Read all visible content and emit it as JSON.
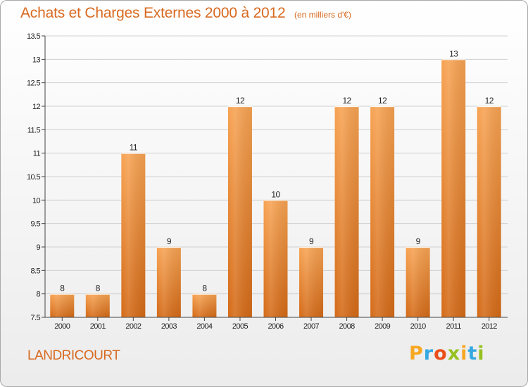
{
  "header": {
    "title": "Achats et Charges Externes 2000 à 2012",
    "subtitle": "(en milliers d'€)"
  },
  "commune": "LANDRICOURT",
  "logo": {
    "letters": [
      "P",
      "r",
      "o",
      "x",
      "i",
      "t",
      "i"
    ],
    "colors": [
      "#f7a823",
      "#36a9e1",
      "#e94e1b",
      "#95c11f",
      "#f7a823",
      "#36a9e1",
      "#95c11f"
    ]
  },
  "colors": {
    "bar_top": "#f7a353",
    "bar_bottom": "#d46a17",
    "text_accent": "#d8691f"
  },
  "chart_data": {
    "type": "bar",
    "title": "Achats et Charges Externes 2000 à 2012",
    "subtitle": "(en milliers d'€)",
    "xlabel": "",
    "ylabel": "",
    "categories": [
      "2000",
      "2001",
      "2002",
      "2003",
      "2004",
      "2005",
      "2006",
      "2007",
      "2008",
      "2009",
      "2010",
      "2011",
      "2012"
    ],
    "values": [
      8,
      8,
      11,
      9,
      8,
      12,
      10,
      9,
      12,
      12,
      9,
      13,
      12
    ],
    "ylim": [
      7.5,
      13.5
    ],
    "yticks": [
      "7.5",
      "8",
      "8.5",
      "9",
      "9.5",
      "10",
      "10.5",
      "11",
      "11.5",
      "12",
      "12.5",
      "13",
      "13.5"
    ],
    "grid": true,
    "legend": "none"
  }
}
